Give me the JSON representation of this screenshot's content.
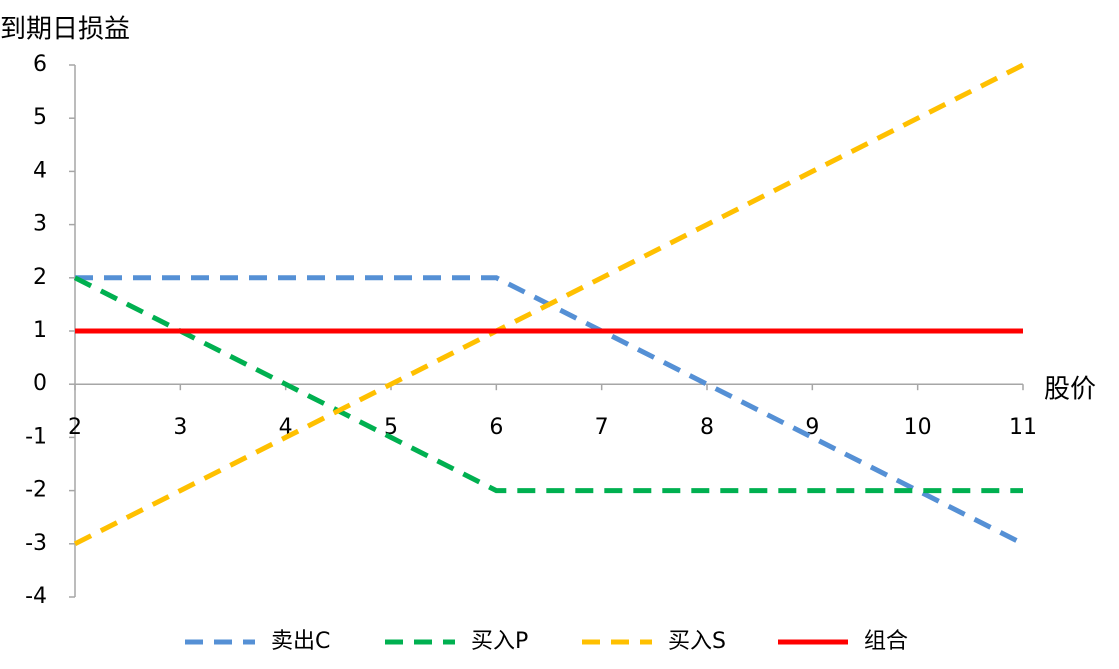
{
  "chart_data": {
    "type": "line",
    "y_axis_title": "到期日损益",
    "x_axis_title": "股价",
    "x": [
      2,
      3,
      4,
      5,
      6,
      7,
      8,
      9,
      10,
      11
    ],
    "xlim": [
      2,
      11
    ],
    "xticks": [
      2,
      3,
      4,
      5,
      6,
      7,
      8,
      9,
      10,
      11
    ],
    "ylim": [
      -4,
      6
    ],
    "yticks": [
      -4,
      -3,
      -2,
      -1,
      0,
      1,
      2,
      3,
      4,
      5,
      6
    ],
    "grid": false,
    "legend": "bottom",
    "series": [
      {
        "name": "卖出C",
        "color": "#5590d5",
        "line_style": "dashed",
        "values": [
          2,
          2,
          2,
          2,
          2,
          1,
          0,
          -1,
          -2,
          -3
        ]
      },
      {
        "name": "买入P",
        "color": "#00b050",
        "line_style": "dashed",
        "values": [
          2,
          1,
          0,
          -1,
          -2,
          -2,
          -2,
          -2,
          -2,
          -2
        ]
      },
      {
        "name": "买入S",
        "color": "#ffc000",
        "line_style": "dashed",
        "values": [
          -3,
          -2,
          -1,
          0,
          1,
          2,
          3,
          4,
          5,
          6
        ]
      },
      {
        "name": "组合",
        "color": "#ff0000",
        "line_style": "solid",
        "values": [
          1,
          1,
          1,
          1,
          1,
          1,
          1,
          1,
          1,
          1
        ]
      }
    ]
  }
}
